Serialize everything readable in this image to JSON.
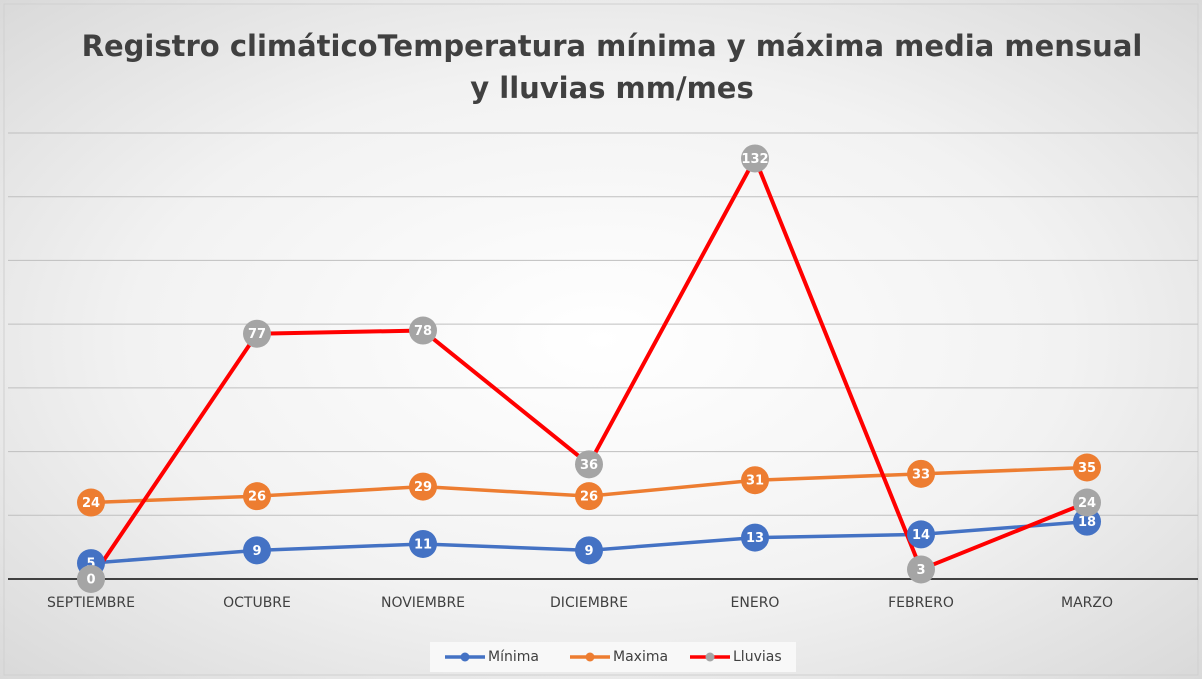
{
  "chart_data": {
    "type": "line",
    "title": [
      "Registro climáticoTemperatura mínima y máxima media mensual",
      "y lluvias mm/mes"
    ],
    "categories": [
      "SEPTIEMBRE",
      "OCTUBRE",
      "NOVIEMBRE",
      "DICIEMBRE",
      "ENERO",
      "FEBRERO",
      "MARZO"
    ],
    "series": [
      {
        "name": "Mínima",
        "color": "#4472c4",
        "marker_color": "#4472c4",
        "values": [
          5,
          9,
          11,
          9,
          13,
          14,
          18
        ]
      },
      {
        "name": "Maxima",
        "color": "#ed7d31",
        "marker_color": "#ed7d31",
        "values": [
          24,
          26,
          29,
          26,
          31,
          33,
          35
        ]
      },
      {
        "name": "Lluvias",
        "color": "#ff0000",
        "marker_color": "#a5a5a5",
        "values": [
          0,
          77,
          78,
          36,
          132,
          3,
          24
        ]
      }
    ],
    "ylim": [
      0,
      140
    ],
    "yticks": [
      0,
      20,
      40,
      60,
      80,
      100,
      120,
      140
    ],
    "grid": true,
    "legend": "bottom"
  }
}
